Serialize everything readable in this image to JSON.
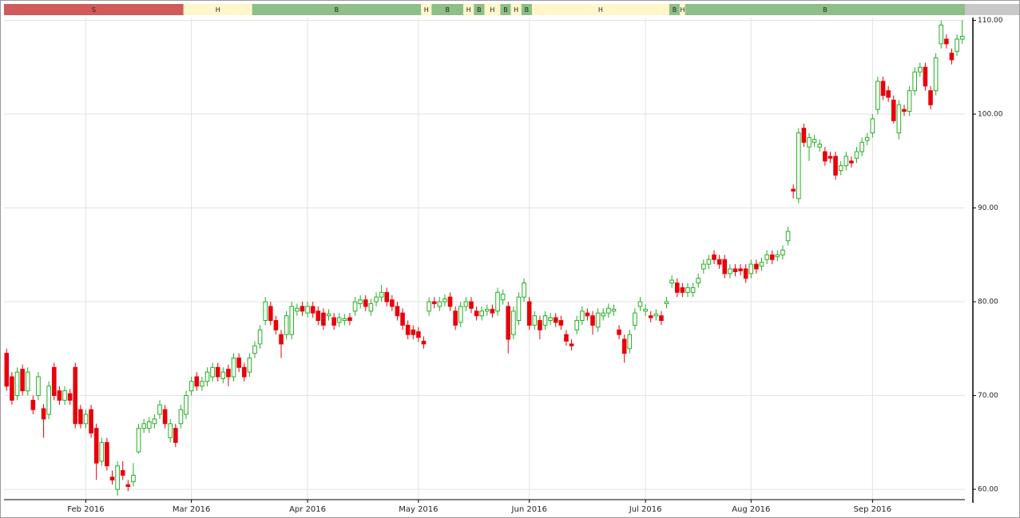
{
  "chart_data": {
    "type": "candlestick",
    "up_color": "#22b022",
    "down_color": "#e8000b",
    "grid": true,
    "ylim": [
      58.9,
      110.3
    ],
    "yticks": [
      {
        "value": 60,
        "label": "60.00"
      },
      {
        "value": 70,
        "label": "70.00"
      },
      {
        "value": 80,
        "label": "80.00"
      },
      {
        "value": 90,
        "label": "90.00"
      },
      {
        "value": 100,
        "label": "100.00"
      },
      {
        "value": 110,
        "label": "110.00"
      }
    ],
    "signal_bands": [
      {
        "label": "S",
        "color": "#d25a5a",
        "from": 0,
        "to": 33
      },
      {
        "label": "H",
        "color": "#fff7c9",
        "from": 34,
        "to": 46
      },
      {
        "label": "B",
        "color": "#8dbf86",
        "from": 47,
        "to": 78
      },
      {
        "label": "H",
        "color": "#fff7c9",
        "from": 79,
        "to": 80
      },
      {
        "label": "B",
        "color": "#8dbf86",
        "from": 81,
        "to": 86
      },
      {
        "label": "H",
        "color": "#fff7c9",
        "from": 87,
        "to": 88
      },
      {
        "label": "B",
        "color": "#8dbf86",
        "from": 89,
        "to": 90
      },
      {
        "label": "H",
        "color": "#fff7c9",
        "from": 91,
        "to": 93
      },
      {
        "label": "B",
        "color": "#8dbf86",
        "from": 94,
        "to": 95
      },
      {
        "label": "H",
        "color": "#fff7c9",
        "from": 96,
        "to": 97
      },
      {
        "label": "B",
        "color": "#8dbf86",
        "from": 98,
        "to": 99
      },
      {
        "label": "H",
        "color": "#fff7c9",
        "from": 100,
        "to": 125
      },
      {
        "label": "B",
        "color": "#8dbf86",
        "from": 126,
        "to": 127
      },
      {
        "label": "H",
        "color": "#fff7c9",
        "from": 128,
        "to": 128
      },
      {
        "label": "B",
        "color": "#8dbf86",
        "from": 129,
        "to": 181
      }
    ],
    "categories": [
      null,
      null,
      null,
      null,
      null,
      null,
      null,
      null,
      null,
      null,
      null,
      null,
      null,
      null,
      null,
      "Feb 2016",
      null,
      null,
      null,
      null,
      null,
      null,
      null,
      null,
      null,
      null,
      null,
      null,
      null,
      null,
      null,
      null,
      null,
      null,
      null,
      "Mar 2016",
      null,
      null,
      null,
      null,
      null,
      null,
      null,
      null,
      null,
      null,
      null,
      null,
      null,
      null,
      null,
      null,
      null,
      null,
      null,
      null,
      null,
      "Apr 2016",
      null,
      null,
      null,
      null,
      null,
      null,
      null,
      null,
      null,
      null,
      null,
      null,
      null,
      null,
      null,
      null,
      null,
      null,
      null,
      null,
      "May 2016",
      null,
      null,
      null,
      null,
      null,
      null,
      null,
      null,
      null,
      null,
      null,
      null,
      null,
      null,
      null,
      null,
      null,
      null,
      null,
      null,
      "Jun 2016",
      null,
      null,
      null,
      null,
      null,
      null,
      null,
      null,
      null,
      null,
      null,
      null,
      null,
      null,
      null,
      null,
      null,
      null,
      null,
      null,
      null,
      "Jul 2016",
      null,
      null,
      null,
      null,
      null,
      null,
      null,
      null,
      null,
      null,
      null,
      null,
      null,
      null,
      null,
      null,
      null,
      null,
      null,
      "Aug 2016",
      null,
      null,
      null,
      null,
      null,
      null,
      null,
      null,
      null,
      null,
      null,
      null,
      null,
      null,
      null,
      null,
      null,
      null,
      null,
      null,
      null,
      null,
      "Sep 2016",
      null,
      null,
      null,
      null,
      null,
      null,
      null,
      null,
      null,
      null,
      null,
      null,
      null,
      null,
      null,
      null,
      null
    ],
    "open": [
      74.5,
      72,
      70,
      72.8,
      70.5,
      69.5,
      70,
      68.6,
      68,
      73,
      70.5,
      69.5,
      70.2,
      73,
      68.5,
      67,
      68.5,
      66.5,
      63,
      65,
      61.3,
      60,
      62,
      60.5,
      60.8,
      64,
      66.5,
      66.5,
      67,
      68,
      68.5,
      65.5,
      66.5,
      67,
      68,
      70.5,
      72,
      71,
      71.5,
      72,
      73,
      71.8,
      72.8,
      72,
      74,
      73,
      72.5,
      74.5,
      75.5,
      78,
      79.5,
      78,
      76.5,
      76.5,
      76.5,
      79,
      79.5,
      78.8,
      79.5,
      79,
      78.8,
      78.5,
      78.3,
      77.8,
      78,
      78.3,
      79,
      79.8,
      80.2,
      79,
      80,
      80.5,
      81,
      80.2,
      79.5,
      78.8,
      77.5,
      77,
      76.8,
      75.8,
      79,
      80,
      79.5,
      80,
      80.5,
      79,
      77.8,
      79.5,
      80,
      79,
      78.5,
      79,
      79.2,
      79,
      80.2,
      79.5,
      76.5,
      78,
      80.5,
      80,
      77.5,
      78,
      77.5,
      78,
      78.3,
      78,
      76.5,
      75.5,
      77,
      78,
      78.8,
      78.5,
      77.3,
      78.5,
      78.8,
      79,
      77,
      76,
      75,
      77.5,
      79.5,
      79,
      78.5,
      78.5,
      78.5,
      79.8,
      82,
      82,
      81.5,
      81,
      81,
      82,
      83.5,
      84,
      85,
      84.5,
      84.5,
      83,
      83.5,
      83.5,
      83.5,
      83,
      84,
      83.8,
      84.5,
      85,
      84.8,
      85,
      86.5,
      92,
      91,
      98.5,
      96.5,
      97,
      96.5,
      96,
      95.5,
      95.5,
      94,
      94.5,
      95,
      95.3,
      96,
      97.2,
      98,
      100.5,
      103.5,
      102.5,
      101.5,
      98,
      100.5,
      100.3,
      102.5,
      104.5,
      105,
      102.5,
      102.5,
      107.5,
      108,
      106.5,
      106.7,
      108
    ],
    "high": [
      75,
      72.5,
      73,
      73.3,
      73,
      70,
      72.5,
      69.1,
      71.5,
      73.5,
      71,
      71,
      70.7,
      73.5,
      69,
      68.5,
      69,
      67,
      65.5,
      65.5,
      62,
      63,
      63,
      61,
      62.8,
      67,
      67.5,
      67.7,
      68,
      69.5,
      69,
      67.5,
      67,
      69,
      70.5,
      72,
      72.5,
      72,
      73,
      73.5,
      73.5,
      73,
      73.3,
      74.5,
      74.5,
      73.5,
      74.5,
      75.8,
      77.5,
      80.5,
      80,
      78.5,
      77,
      79,
      80,
      79.8,
      80,
      80,
      80,
      79.5,
      79.3,
      79.2,
      78.8,
      78.8,
      78.7,
      78.8,
      80.5,
      80.7,
      80.7,
      80.3,
      81,
      81.8,
      81.5,
      80.7,
      80,
      79.3,
      78,
      77.5,
      77.3,
      76.3,
      80.5,
      80.5,
      80.5,
      80.8,
      81,
      79.5,
      80,
      80.5,
      80.5,
      79.5,
      79.5,
      79.7,
      79.7,
      81.5,
      81.3,
      80,
      79.5,
      81,
      82.5,
      80.5,
      79,
      78.5,
      79,
      78.8,
      78.8,
      78.5,
      77,
      76,
      78.5,
      79.5,
      79.3,
      79,
      79.3,
      79.3,
      79.8,
      79.7,
      77.5,
      76.5,
      77,
      79.3,
      80.5,
      79.7,
      79,
      79.2,
      79,
      80.5,
      82.8,
      82.5,
      82,
      82,
      82,
      83,
      84.5,
      85,
      85.5,
      85,
      85,
      84,
      84,
      84,
      84,
      84.5,
      84.5,
      84.7,
      85.5,
      85.5,
      85.5,
      86,
      88,
      92.5,
      98.5,
      99,
      98,
      97.8,
      97.3,
      96.5,
      96,
      96,
      95,
      96,
      95.5,
      96.5,
      97.5,
      98,
      100,
      104,
      104,
      103,
      102,
      101.5,
      101,
      103,
      105,
      105.5,
      105.5,
      103,
      106.5,
      110,
      108.5,
      107,
      108.5,
      110
    ],
    "low": [
      70.5,
      69,
      69.5,
      70,
      70,
      68,
      69.5,
      65.5,
      67.5,
      69.5,
      69,
      69,
      69,
      66.5,
      66.5,
      66.5,
      65.5,
      61,
      62.5,
      62,
      60.5,
      59.3,
      61,
      59.8,
      60.3,
      63.8,
      66,
      66,
      66.5,
      67.5,
      66.5,
      65,
      64.5,
      66.5,
      67.5,
      70,
      70.5,
      70.5,
      71,
      71.5,
      71.5,
      71.3,
      71,
      71.5,
      72.5,
      71.5,
      72,
      74,
      75,
      77.5,
      77.5,
      76.5,
      74,
      76,
      76,
      78.5,
      78.5,
      78.3,
      78.3,
      77.5,
      77,
      78,
      77,
      77.3,
      77.5,
      77.5,
      78.5,
      79.3,
      79,
      78.5,
      79.5,
      80,
      79.5,
      79,
      78,
      77,
      76,
      76,
      75.7,
      75,
      78.5,
      79.3,
      79,
      79.5,
      79,
      77,
      77.3,
      79,
      78.8,
      78,
      78,
      78.5,
      78.3,
      78.5,
      79.7,
      74.5,
      76,
      77.5,
      80,
      77,
      77,
      76,
      77,
      77.5,
      77.3,
      77,
      75.3,
      74.8,
      76.5,
      77.5,
      78,
      76.5,
      76.8,
      78,
      78.3,
      78.5,
      76,
      73.5,
      74.5,
      77,
      79,
      78.5,
      77.8,
      78,
      77.5,
      79.3,
      81.5,
      80.5,
      80.5,
      80.5,
      80.5,
      81.5,
      83,
      83.5,
      84,
      83.5,
      82.5,
      82.5,
      82.7,
      82.8,
      82,
      82.5,
      83,
      83.3,
      84,
      84,
      84.3,
      84.5,
      86,
      91,
      90.5,
      96.5,
      95,
      96.5,
      96,
      94.5,
      94.8,
      93,
      93.5,
      94,
      94.3,
      94.8,
      95.5,
      96.7,
      97.5,
      100,
      101.5,
      101.3,
      99,
      97.3,
      99.8,
      99.8,
      102,
      104,
      102.5,
      100.5,
      102,
      107,
      107,
      105.3,
      106.2,
      107.5
    ],
    "close": [
      71,
      69.5,
      72.5,
      70.5,
      72.5,
      68.5,
      72,
      67.5,
      71,
      70,
      69.5,
      70.5,
      69.5,
      67,
      67,
      68,
      66,
      62.8,
      65,
      62.5,
      61,
      62.5,
      61.5,
      60.3,
      61.5,
      66.5,
      67,
      67.2,
      67.5,
      69,
      67,
      67,
      65,
      68.5,
      70,
      71.5,
      71,
      71.5,
      72.5,
      73,
      72,
      72.5,
      72,
      74,
      73,
      72,
      74,
      75.3,
      77,
      80,
      78,
      77,
      75.5,
      78.5,
      79.5,
      79.3,
      79,
      79.5,
      78.8,
      78,
      77.5,
      78.7,
      77.5,
      78.3,
      78.2,
      78,
      80,
      80.2,
      79.5,
      79.8,
      80.5,
      81,
      80,
      79.5,
      78.5,
      77.5,
      76.5,
      76.5,
      76.2,
      75.5,
      80,
      79.8,
      80,
      80.3,
      79.5,
      77.5,
      79.5,
      80,
      79.3,
      78.5,
      79,
      79.2,
      78.8,
      81,
      80.8,
      76,
      79,
      80.5,
      82,
      77.5,
      78.5,
      77,
      78.5,
      78.3,
      77.8,
      77.5,
      75.8,
      75.3,
      78,
      79,
      78.5,
      77.5,
      78.8,
      78.8,
      79.3,
      79.2,
      76.5,
      74.5,
      76.5,
      78.8,
      80,
      79.2,
      78.3,
      78.7,
      78,
      80,
      82.3,
      81,
      81,
      81.5,
      81.5,
      82.5,
      84,
      84.5,
      84.5,
      84,
      83,
      83.5,
      83.2,
      83.3,
      82.5,
      84,
      83.5,
      84.2,
      85,
      84.5,
      85,
      85.5,
      87.5,
      91.8,
      98,
      97,
      97.5,
      97.3,
      96.8,
      95,
      95.3,
      93.5,
      94.5,
      95.5,
      94.8,
      96,
      97,
      97.5,
      99.5,
      103.5,
      102,
      101.8,
      99.3,
      101,
      100.3,
      102.5,
      104.5,
      105,
      103,
      101,
      106,
      109.5,
      107.5,
      105.8,
      108,
      108.3
    ]
  }
}
